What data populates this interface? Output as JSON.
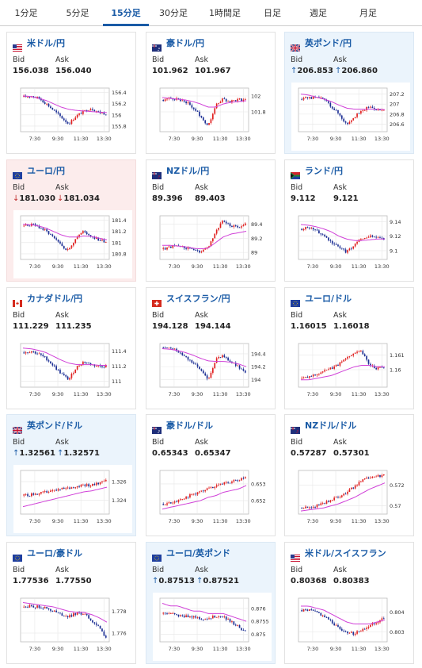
{
  "tabs": [
    {
      "label": "1分足",
      "active": false
    },
    {
      "label": "5分足",
      "active": false
    },
    {
      "label": "15分足",
      "active": true
    },
    {
      "label": "30分足",
      "active": false
    },
    {
      "label": "1時間足",
      "active": false
    },
    {
      "label": "日足",
      "active": false
    },
    {
      "label": "週足",
      "active": false
    },
    {
      "label": "月足",
      "active": false
    }
  ],
  "labels": {
    "bid": "Bid",
    "ask": "Ask"
  },
  "colors": {
    "link": "#1a5ba6",
    "up_candle": "#e02020",
    "down_candle": "#1c2f94",
    "ma": "#d040d8",
    "ma_secondary": "#30b4b4",
    "card_blue": "#ebf4fc",
    "card_pink": "#fcecec"
  },
  "x_ticks": [
    "7:30",
    "9:30",
    "11:30",
    "13:30"
  ],
  "cards": [
    {
      "name": "米ドル/円",
      "flag": "us-jp-flag",
      "bid": "156.038",
      "ask": "156.040",
      "dir": "",
      "bg": "white",
      "y_ticks": [
        "156.4",
        "156.2",
        "156",
        "155.8"
      ],
      "ylim": [
        155.7,
        156.48
      ],
      "trend": [
        156.32,
        156.34,
        156.3,
        156.2,
        156.08,
        155.96,
        155.84,
        155.98,
        156.06,
        156.12,
        156.05,
        156.02
      ],
      "ma": [
        156.34,
        156.33,
        156.3,
        156.26,
        156.2,
        156.14,
        156.1,
        156.08,
        156.07,
        156.06,
        156.05,
        156.04
      ]
    },
    {
      "name": "豪ドル/円",
      "flag": "au-jp-flag",
      "bid": "101.962",
      "ask": "101.967",
      "dir": "",
      "bg": "white",
      "y_ticks": [
        "102",
        "101.8"
      ],
      "ylim": [
        101.55,
        102.1
      ],
      "trend": [
        101.95,
        101.97,
        101.96,
        101.93,
        101.85,
        101.75,
        101.62,
        101.88,
        101.96,
        101.93,
        101.95,
        101.96
      ],
      "ma": [
        101.98,
        101.97,
        101.96,
        101.95,
        101.93,
        101.9,
        101.86,
        101.86,
        101.9,
        101.92,
        101.93,
        101.94
      ]
    },
    {
      "name": "英ポンド/円",
      "flag": "gb-jp-flag",
      "bid": "206.853",
      "ask": "206.860",
      "dir": "up",
      "bg": "blue",
      "y_ticks": [
        "207.2",
        "207",
        "206.8",
        "206.6"
      ],
      "ylim": [
        206.45,
        207.32
      ],
      "trend": [
        207.1,
        207.13,
        207.12,
        207.1,
        206.95,
        206.8,
        206.6,
        206.75,
        206.85,
        206.95,
        206.9,
        206.86
      ],
      "ma": [
        207.2,
        207.18,
        207.14,
        207.1,
        207.05,
        206.98,
        206.92,
        206.9,
        206.9,
        206.9,
        206.9,
        206.89
      ]
    },
    {
      "name": "ユーロ/円",
      "flag": "eu-jp-flag",
      "bid": "181.030",
      "ask": "181.034",
      "dir": "down",
      "bg": "pink",
      "y_ticks": [
        "181.4",
        "181.2",
        "181",
        "180.8"
      ],
      "ylim": [
        180.7,
        181.48
      ],
      "trend": [
        181.3,
        181.32,
        181.28,
        181.2,
        181.08,
        180.95,
        180.86,
        181.1,
        181.2,
        181.12,
        181.05,
        181.02
      ],
      "ma": [
        181.33,
        181.32,
        181.3,
        181.26,
        181.2,
        181.14,
        181.1,
        181.1,
        181.12,
        181.11,
        181.08,
        181.05
      ]
    },
    {
      "name": "NZドル/円",
      "flag": "nz-jp-flag",
      "bid": "89.396",
      "ask": "89.403",
      "dir": "",
      "bg": "white",
      "y_ticks": [
        "89.4",
        "89.2",
        "89"
      ],
      "ylim": [
        88.9,
        89.52
      ],
      "trend": [
        89.05,
        89.08,
        89.1,
        89.06,
        89.04,
        89.0,
        89.06,
        89.3,
        89.45,
        89.38,
        89.36,
        89.4
      ],
      "ma": [
        89.1,
        89.1,
        89.09,
        89.08,
        89.06,
        89.05,
        89.06,
        89.14,
        89.22,
        89.26,
        89.28,
        89.3
      ]
    },
    {
      "name": "ランド/円",
      "flag": "za-jp-flag",
      "bid": "9.112",
      "ask": "9.121",
      "dir": "",
      "bg": "white",
      "y_ticks": [
        "9.14",
        "9.12",
        "9.1"
      ],
      "ylim": [
        9.088,
        9.148
      ],
      "trend": [
        9.13,
        9.132,
        9.128,
        9.12,
        9.112,
        9.104,
        9.098,
        9.108,
        9.116,
        9.12,
        9.118,
        9.116
      ],
      "ma": [
        9.136,
        9.135,
        9.133,
        9.13,
        9.126,
        9.12,
        9.116,
        9.114,
        9.114,
        9.115,
        9.116,
        9.116
      ]
    },
    {
      "name": "カナダドル/円",
      "flag": "ca-jp-flag",
      "bid": "111.229",
      "ask": "111.235",
      "dir": "",
      "bg": "white",
      "y_ticks": [
        "111.4",
        "111.2",
        "111"
      ],
      "ylim": [
        110.92,
        111.5
      ],
      "trend": [
        111.38,
        111.4,
        111.36,
        111.3,
        111.2,
        111.1,
        111.02,
        111.18,
        111.26,
        111.22,
        111.2,
        111.2
      ],
      "ma": [
        111.44,
        111.43,
        111.41,
        111.38,
        111.33,
        111.28,
        111.24,
        111.22,
        111.22,
        111.22,
        111.21,
        111.21
      ]
    },
    {
      "name": "スイスフラン/円",
      "flag": "ch-jp-flag",
      "bid": "194.128",
      "ask": "194.144",
      "dir": "",
      "bg": "white",
      "y_ticks": [
        "194.4",
        "194.2",
        "194"
      ],
      "ylim": [
        193.88,
        194.56
      ],
      "trend": [
        194.5,
        194.48,
        194.44,
        194.36,
        194.26,
        194.14,
        194.0,
        194.3,
        194.38,
        194.28,
        194.2,
        194.12
      ],
      "ma": [
        194.48,
        194.47,
        194.45,
        194.42,
        194.38,
        194.33,
        194.29,
        194.28,
        194.28,
        194.27,
        194.24,
        194.2
      ]
    },
    {
      "name": "ユーロ/ドル",
      "flag": "eu-us-flag",
      "bid": "1.16015",
      "ask": "1.16018",
      "dir": "",
      "bg": "white",
      "y_ticks": [
        "1.161",
        "1.16"
      ],
      "ylim": [
        1.1588,
        1.1618
      ],
      "trend": [
        1.1594,
        1.1595,
        1.1597,
        1.1599,
        1.1601,
        1.1604,
        1.1608,
        1.1612,
        1.1613,
        1.1604,
        1.1601,
        1.1601
      ],
      "ma": [
        1.1593,
        1.1593,
        1.1594,
        1.1595,
        1.1596,
        1.1598,
        1.16,
        1.1602,
        1.1603,
        1.1603,
        1.1602,
        1.1602
      ]
    },
    {
      "name": "英ポンド/ドル",
      "flag": "gb-us-flag",
      "bid": "1.32561",
      "ask": "1.32571",
      "dir": "up",
      "bg": "blue",
      "y_ticks": [
        "1.326",
        "1.324"
      ],
      "ylim": [
        1.3225,
        1.3272
      ],
      "trend": [
        1.3245,
        1.3246,
        1.3247,
        1.3249,
        1.325,
        1.3252,
        1.3253,
        1.3255,
        1.3257,
        1.3256,
        1.3258,
        1.3263
      ],
      "ma": [
        1.3233,
        1.3235,
        1.3237,
        1.3239,
        1.3241,
        1.3243,
        1.3245,
        1.3247,
        1.3249,
        1.325,
        1.3252,
        1.3254
      ]
    },
    {
      "name": "豪ドル/ドル",
      "flag": "au-us-flag",
      "bid": "0.65343",
      "ask": "0.65347",
      "dir": "",
      "bg": "white",
      "y_ticks": [
        "0.653",
        "0.652"
      ],
      "ylim": [
        0.6512,
        0.6538
      ],
      "trend": [
        0.6518,
        0.6519,
        0.652,
        0.6522,
        0.6524,
        0.6525,
        0.6527,
        0.6529,
        0.653,
        0.6531,
        0.6532,
        0.6534
      ],
      "ma": [
        0.6515,
        0.6516,
        0.6517,
        0.6518,
        0.6519,
        0.652,
        0.6522,
        0.6523,
        0.6525,
        0.6526,
        0.6527,
        0.6529
      ]
    },
    {
      "name": "NZドル/ドル",
      "flag": "nz-us-flag",
      "bid": "0.57287",
      "ask": "0.57301",
      "dir": "",
      "bg": "white",
      "y_ticks": [
        "0.572",
        "0.57"
      ],
      "ylim": [
        0.5692,
        0.5734
      ],
      "trend": [
        0.5698,
        0.5699,
        0.57,
        0.5703,
        0.5706,
        0.5709,
        0.5713,
        0.5718,
        0.5724,
        0.5727,
        0.5728,
        0.5729
      ],
      "ma": [
        0.5695,
        0.5696,
        0.5697,
        0.5698,
        0.57,
        0.5702,
        0.5705,
        0.5708,
        0.5712,
        0.5716,
        0.5719,
        0.5722
      ]
    },
    {
      "name": "ユーロ/豪ドル",
      "flag": "eu-au-flag",
      "bid": "1.77536",
      "ask": "1.77550",
      "dir": "",
      "bg": "white",
      "y_ticks": [
        "1.778",
        "1.776"
      ],
      "ylim": [
        1.7752,
        1.7792
      ],
      "trend": [
        1.7784,
        1.7785,
        1.7784,
        1.7783,
        1.778,
        1.7777,
        1.7775,
        1.7778,
        1.7778,
        1.7772,
        1.7766,
        1.7756
      ],
      "ma": [
        1.7788,
        1.7787,
        1.7786,
        1.7785,
        1.7784,
        1.7782,
        1.778,
        1.7779,
        1.7779,
        1.7777,
        1.7774,
        1.777
      ]
    },
    {
      "name": "ユーロ/英ポンド",
      "flag": "eu-gb-flag",
      "bid": "0.87513",
      "ask": "0.87521",
      "dir": "up",
      "bg": "blue",
      "y_ticks": [
        "0.876",
        "0.8755",
        "0.875"
      ],
      "ylim": [
        0.8747,
        0.8764
      ],
      "trend": [
        0.8758,
        0.8758,
        0.8757,
        0.8757,
        0.8757,
        0.8756,
        0.8756,
        0.8757,
        0.8757,
        0.8755,
        0.8753,
        0.8751
      ],
      "ma": [
        0.8762,
        0.8761,
        0.8761,
        0.876,
        0.8759,
        0.8759,
        0.8758,
        0.8758,
        0.8758,
        0.8757,
        0.8756,
        0.8755
      ]
    },
    {
      "name": "米ドル/スイスフラン",
      "flag": "us-ch-flag",
      "bid": "0.80368",
      "ask": "0.80383",
      "dir": "",
      "bg": "white",
      "y_ticks": [
        "0.804",
        "0.803"
      ],
      "ylim": [
        0.8025,
        0.8047
      ],
      "trend": [
        0.8041,
        0.8041,
        0.804,
        0.8038,
        0.8035,
        0.8032,
        0.803,
        0.8029,
        0.8031,
        0.8033,
        0.8035,
        0.8037
      ],
      "ma": [
        0.8043,
        0.8043,
        0.8042,
        0.8041,
        0.8039,
        0.8037,
        0.8035,
        0.8034,
        0.8034,
        0.8034,
        0.8035,
        0.8036
      ]
    }
  ]
}
